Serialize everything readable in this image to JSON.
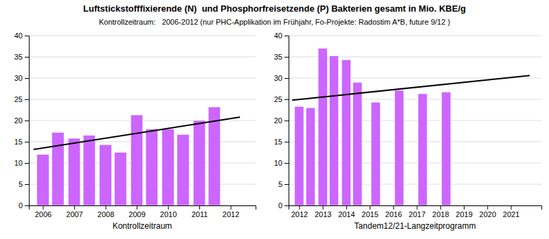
{
  "chart_data": [
    {
      "type": "bar",
      "title": "Luftstickstofffixierende (N)  und Phosphorfreisetzende (P) Bakterien gesamt in Mio. KBE/g",
      "subtitle": "Kontrollzeitraum:   2006-2012 (nur PHC-Applikation im Frühjahr, Fo-Projekte: Radostim A*B, future 9/12 )",
      "xlabel": "Kontrollzeitraum",
      "series": [
        {
          "type": "bar",
          "color": "#CC66FF",
          "x": [
            2006.0,
            2006.48,
            2007.0,
            2007.48,
            2008.0,
            2008.48,
            2009.0,
            2009.48,
            2010.0,
            2010.48,
            2011.0,
            2011.48
          ],
          "values": [
            12.0,
            17.2,
            15.8,
            16.5,
            14.3,
            12.5,
            21.3,
            18.0,
            18.0,
            16.7,
            20.0,
            23.2
          ]
        },
        {
          "type": "line",
          "color": "#000000",
          "x": [
            2005.7,
            2012.3
          ],
          "values": [
            13.2,
            20.8
          ]
        }
      ],
      "xlim": [
        2005.55,
        2012.8
      ],
      "xticks": [
        2006,
        2007,
        2008,
        2009,
        2010,
        2011,
        2012
      ],
      "ylim": [
        0,
        40
      ],
      "yticks": [
        0,
        5,
        10,
        15,
        20,
        25,
        30,
        35,
        40
      ],
      "grid": true
    },
    {
      "type": "bar",
      "xlabel": "Tandem12/21-Langzeitprogramm",
      "series": [
        {
          "type": "bar",
          "color": "#CC66FF",
          "x": [
            2012.0,
            2012.48,
            2013.0,
            2013.48,
            2014.0,
            2014.48,
            2015.25,
            2016.25,
            2017.25,
            2018.25
          ],
          "values": [
            23.3,
            23.0,
            37.0,
            35.2,
            34.3,
            29.0,
            24.3,
            27.1,
            26.3,
            26.7
          ]
        },
        {
          "type": "line",
          "color": "#000000",
          "x": [
            2011.7,
            2021.8
          ],
          "values": [
            24.8,
            30.6
          ]
        }
      ],
      "xlim": [
        2011.55,
        2022.3
      ],
      "xticks": [
        2012,
        2013,
        2014,
        2015,
        2016,
        2017,
        2018,
        2019,
        2020,
        2021
      ],
      "ylim": [
        0,
        40
      ],
      "yticks": [
        0,
        5,
        10,
        15,
        20,
        25,
        30,
        35,
        40
      ],
      "grid": true
    }
  ]
}
